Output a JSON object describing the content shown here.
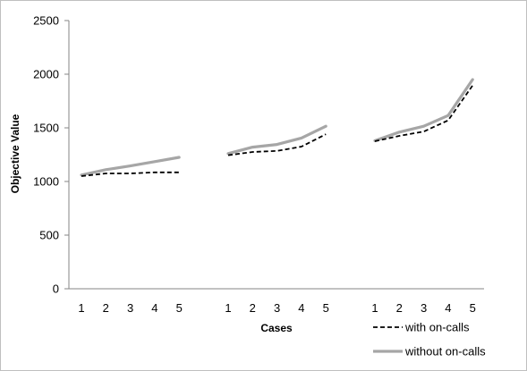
{
  "chart_data": {
    "type": "line",
    "xlabel": "Cases",
    "ylabel": "Objective Value",
    "ylim": [
      0,
      2500
    ],
    "yticks": [
      0,
      500,
      1000,
      1500,
      2000,
      2500
    ],
    "grid": false,
    "legend_position": "bottom-right",
    "groups": [
      {
        "categories": [
          "1",
          "2",
          "3",
          "4",
          "5"
        ],
        "series": [
          {
            "name": "with on-calls",
            "values": [
              1050,
              1075,
              1075,
              1085,
              1085
            ]
          },
          {
            "name": "without on-calls",
            "values": [
              1060,
              1110,
              1145,
              1185,
              1225
            ]
          }
        ]
      },
      {
        "categories": [
          "1",
          "2",
          "3",
          "4",
          "5"
        ],
        "series": [
          {
            "name": "with on-calls",
            "values": [
              1245,
              1275,
              1285,
              1325,
              1440
            ]
          },
          {
            "name": "without on-calls",
            "values": [
              1260,
              1320,
              1345,
              1405,
              1515
            ]
          }
        ]
      },
      {
        "categories": [
          "1",
          "2",
          "3",
          "4",
          "5"
        ],
        "series": [
          {
            "name": "with on-calls",
            "values": [
              1375,
              1425,
              1465,
              1570,
              1895
            ]
          },
          {
            "name": "without on-calls",
            "values": [
              1380,
              1460,
              1515,
              1615,
              1950
            ]
          }
        ]
      }
    ],
    "legend": [
      {
        "label": "with on-calls",
        "color": "#000000",
        "style": "dashed"
      },
      {
        "label": "without on-calls",
        "color": "#a6a6a6",
        "style": "solid"
      }
    ]
  }
}
